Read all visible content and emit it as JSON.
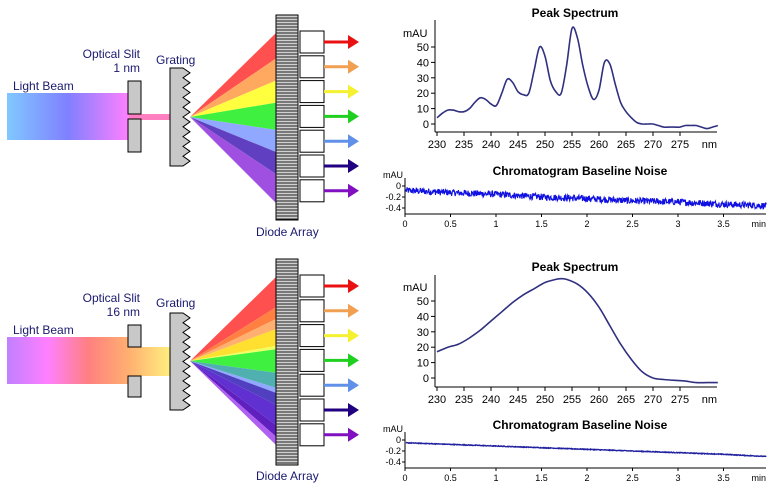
{
  "panels": [
    {
      "labels": {
        "light_beam": "Light Beam",
        "optical_slit": "Optical Slit",
        "slit_width": "1 nm",
        "grating": "Grating",
        "diode_array": "Diode Array"
      },
      "beam_colors": [
        "#80c8ff",
        "#8080ff",
        "#ff80ff"
      ],
      "slit_beam_colors": [
        "#ff80c0",
        "#ff80c0"
      ],
      "slit_wide": false,
      "fan_bands": [
        {
          "name": "red",
          "color": "#ff5050",
          "frac": [
            0.0,
            0.15
          ]
        },
        {
          "name": "orange",
          "color": "#ffa860",
          "frac": [
            0.15,
            0.28
          ]
        },
        {
          "name": "yellow",
          "color": "#ffff40",
          "frac": [
            0.28,
            0.41
          ]
        },
        {
          "name": "green",
          "color": "#40f040",
          "frac": [
            0.41,
            0.57
          ]
        },
        {
          "name": "light-blue",
          "color": "#90a8ff",
          "frac": [
            0.57,
            0.7
          ]
        },
        {
          "name": "indigo",
          "color": "#6040c0",
          "frac": [
            0.7,
            0.83
          ]
        },
        {
          "name": "violet",
          "color": "#a050e0",
          "frac": [
            0.83,
            1.0
          ]
        }
      ],
      "spectrum_chart": {
        "title": "Peak Spectrum",
        "ylabel": "mAU",
        "xunit": "nm",
        "xticks": [
          230,
          235,
          240,
          245,
          250,
          255,
          260,
          265,
          270,
          275
        ],
        "yticks": [
          0,
          10,
          20,
          30,
          40,
          50
        ],
        "xlim": [
          230,
          282
        ],
        "ylim": [
          -5,
          65
        ],
        "color": "#303080"
      },
      "noise_chart": {
        "title": "Chromatogram Baseline Noise",
        "ylabel": "mAU",
        "xunit": "min",
        "xticks": [
          0,
          0.5,
          1,
          1.5,
          2,
          2.5,
          3,
          3.5
        ],
        "yticks": [
          "0",
          "-0.2",
          "-0.4"
        ],
        "xlim": [
          0,
          4.0
        ],
        "ylim": [
          -0.5,
          0.1
        ],
        "color": "#1010e0",
        "noise_amplitude": 0.06
      }
    },
    {
      "labels": {
        "light_beam": "Light Beam",
        "optical_slit": "Optical Slit",
        "slit_width": "16 nm",
        "grating": "Grating",
        "diode_array": "Diode Array"
      },
      "beam_colors": [
        "#c080ff",
        "#ff80ff",
        "#ff8080",
        "#ffb070"
      ],
      "slit_beam_colors": [
        "#ffb070",
        "#fff080"
      ],
      "slit_wide": true,
      "fan_bands": [
        {
          "name": "red",
          "color": "#ff5050",
          "frac": [
            0.0,
            0.18
          ]
        },
        {
          "name": "orange",
          "color": "#ff8040",
          "frac": [
            0.18,
            0.25
          ]
        },
        {
          "name": "light-orange",
          "color": "#ffb070",
          "frac": [
            0.25,
            0.31
          ]
        },
        {
          "name": "yellow",
          "color": "#ffe030",
          "frac": [
            0.31,
            0.41
          ]
        },
        {
          "name": "light-yellow",
          "color": "#f0ff60",
          "frac": [
            0.41,
            0.43
          ]
        },
        {
          "name": "green",
          "color": "#40f040",
          "frac": [
            0.43,
            0.57
          ]
        },
        {
          "name": "teal",
          "color": "#50b0b0",
          "frac": [
            0.57,
            0.66
          ]
        },
        {
          "name": "light-blue",
          "color": "#90a8ff",
          "frac": [
            0.66,
            0.69
          ]
        },
        {
          "name": "indigo",
          "color": "#5040c0",
          "frac": [
            0.69,
            0.76
          ]
        },
        {
          "name": "blue-purple",
          "color": "#6030d0",
          "frac": [
            0.76,
            0.88
          ]
        },
        {
          "name": "deep-purple",
          "color": "#6020c0",
          "frac": [
            0.88,
            0.95
          ]
        },
        {
          "name": "violet",
          "color": "#b060f0",
          "frac": [
            0.95,
            1.0
          ]
        }
      ],
      "spectrum_chart": {
        "title": "Peak Spectrum",
        "ylabel": "mAU",
        "xunit": "nm",
        "xticks": [
          230,
          235,
          240,
          245,
          250,
          255,
          260,
          265,
          270,
          275
        ],
        "yticks": [
          0,
          10,
          20,
          30,
          40,
          50
        ],
        "xlim": [
          230,
          282
        ],
        "ylim": [
          -5,
          65
        ],
        "color": "#303080"
      },
      "noise_chart": {
        "title": "Chromatogram Baseline Noise",
        "ylabel": "mAU",
        "xunit": "min",
        "xticks": [
          0,
          0.5,
          1,
          1.5,
          2,
          2.5,
          3,
          3.5
        ],
        "yticks": [
          "0",
          "-0.2",
          "-0.4"
        ],
        "xlim": [
          0,
          4.0
        ],
        "ylim": [
          -0.5,
          0.1
        ],
        "color": "#2020a0",
        "noise_amplitude": 0.006
      }
    }
  ],
  "arrow_colors": [
    "#e81010",
    "#f0a050",
    "#f5f030",
    "#20d020",
    "#6090e8",
    "#200080",
    "#8010c0"
  ],
  "chart_data": [
    {
      "type": "line",
      "title": "Peak Spectrum",
      "subtitle": "Optical Slit 1 nm",
      "xlabel": "nm",
      "ylabel": "mAU",
      "xlim": [
        230,
        282
      ],
      "ylim": [
        -5,
        65
      ],
      "x": [
        230,
        231,
        232,
        233,
        234,
        235,
        236,
        237,
        238,
        239,
        240,
        241,
        242,
        243,
        244,
        245,
        246,
        247,
        248,
        249,
        250,
        251,
        252,
        253,
        254,
        255,
        256,
        257,
        258,
        259,
        260,
        261,
        262,
        263,
        264,
        265,
        266,
        267,
        268,
        269,
        270,
        271,
        272,
        273,
        274,
        275,
        276,
        277,
        278,
        279,
        280,
        281,
        282
      ],
      "y": [
        4,
        7,
        9,
        9,
        8,
        8,
        10,
        14,
        17,
        16,
        13,
        12,
        20,
        29,
        27,
        21,
        19,
        20,
        35,
        50,
        44,
        28,
        21,
        20,
        38,
        62,
        56,
        38,
        24,
        16,
        22,
        40,
        39,
        26,
        14,
        8,
        4,
        1,
        0,
        0,
        0,
        -1,
        -2,
        -2,
        -2,
        -2,
        -1,
        -1,
        -1,
        -2,
        -3,
        -2,
        -1
      ]
    },
    {
      "type": "line",
      "title": "Chromatogram Baseline Noise",
      "subtitle": "Optical Slit 1 nm",
      "xlabel": "min",
      "ylabel": "mAU",
      "xlim": [
        0,
        4.0
      ],
      "ylim": [
        -0.5,
        0.1
      ],
      "x": [
        0,
        0.5,
        1,
        1.5,
        2,
        2.5,
        3,
        3.5,
        3.97
      ],
      "y": [
        -0.08,
        -0.12,
        -0.15,
        -0.2,
        -0.23,
        -0.27,
        -0.29,
        -0.33,
        -0.36
      ],
      "noise_amplitude": 0.06
    },
    {
      "type": "line",
      "title": "Peak Spectrum",
      "subtitle": "Optical Slit 16 nm",
      "xlabel": "nm",
      "ylabel": "mAU",
      "xlim": [
        230,
        282
      ],
      "ylim": [
        -5,
        65
      ],
      "x": [
        230,
        232,
        234,
        236,
        238,
        240,
        242,
        244,
        246,
        248,
        250,
        252,
        253,
        254,
        256,
        258,
        260,
        262,
        264,
        266,
        268,
        270,
        272,
        274,
        276,
        278,
        280,
        282
      ],
      "y": [
        17,
        20,
        22,
        26,
        31,
        37,
        43,
        49,
        54,
        58,
        62,
        64,
        64.5,
        64,
        61,
        55,
        46,
        34,
        22,
        12,
        4,
        0,
        -1,
        -1.5,
        -2,
        -3,
        -3,
        -3
      ]
    },
    {
      "type": "line",
      "title": "Chromatogram Baseline Noise",
      "subtitle": "Optical Slit 16 nm",
      "xlabel": "min",
      "ylabel": "mAU",
      "xlim": [
        0,
        4.0
      ],
      "ylim": [
        -0.5,
        0.1
      ],
      "x": [
        0,
        0.5,
        1,
        1.5,
        2,
        2.5,
        3,
        3.5,
        3.97
      ],
      "y": [
        -0.05,
        -0.08,
        -0.11,
        -0.14,
        -0.17,
        -0.2,
        -0.23,
        -0.26,
        -0.3
      ],
      "noise_amplitude": 0.006
    }
  ]
}
